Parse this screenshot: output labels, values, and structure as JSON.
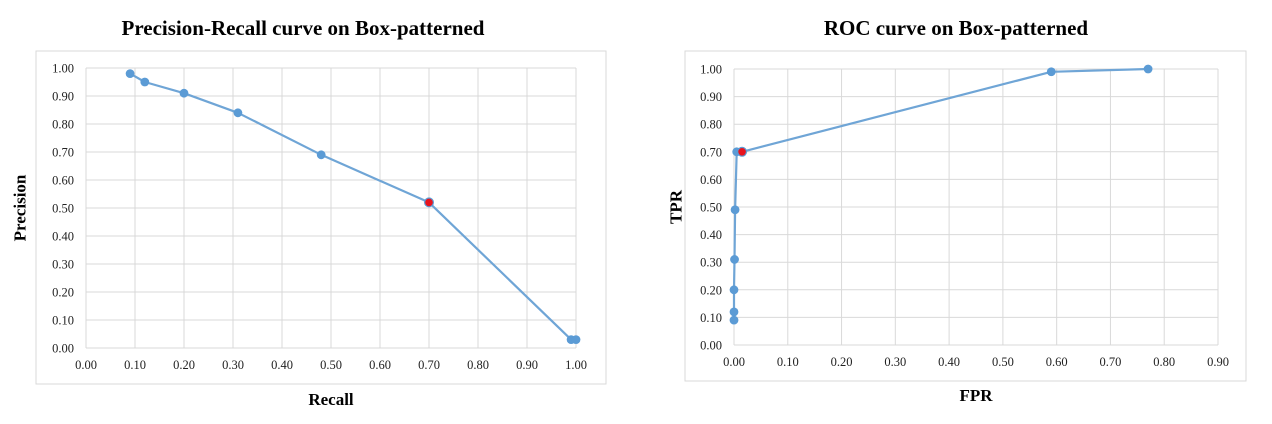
{
  "chart_data": [
    {
      "type": "line",
      "title": "Precision-Recall curve on Box-patterned",
      "xlabel": "Recall",
      "ylabel": "Precision",
      "xlim": [
        0,
        1
      ],
      "ylim": [
        0,
        1
      ],
      "x_ticks": [
        "0.00",
        "0.10",
        "0.20",
        "0.30",
        "0.40",
        "0.50",
        "0.60",
        "0.70",
        "0.80",
        "0.90",
        "1.00"
      ],
      "y_ticks": [
        "0.00",
        "0.10",
        "0.20",
        "0.30",
        "0.40",
        "0.50",
        "0.60",
        "0.70",
        "0.80",
        "0.90",
        "1.00"
      ],
      "grid": true,
      "legend": "none",
      "colors": {
        "line": "#6fa5d6",
        "marker": "#5b9bd5",
        "highlight": "#e8141e"
      },
      "series": [
        {
          "x": [
            0.09,
            0.12,
            0.2,
            0.31,
            0.48,
            0.7,
            0.99,
            1.0
          ],
          "y": [
            0.98,
            0.95,
            0.91,
            0.84,
            0.69,
            0.52,
            0.03,
            0.03
          ]
        }
      ],
      "highlight_point": {
        "x": 0.7,
        "y": 0.52
      }
    },
    {
      "type": "line",
      "title": "ROC curve on Box-patterned",
      "xlabel": "FPR",
      "ylabel": "TPR",
      "xlim": [
        0,
        0.9
      ],
      "ylim": [
        0,
        1
      ],
      "x_ticks": [
        "0.00",
        "0.10",
        "0.20",
        "0.30",
        "0.40",
        "0.50",
        "0.60",
        "0.70",
        "0.80",
        "0.90"
      ],
      "y_ticks": [
        "0.00",
        "0.10",
        "0.20",
        "0.30",
        "0.40",
        "0.50",
        "0.60",
        "0.70",
        "0.80",
        "0.90",
        "1.00"
      ],
      "grid": true,
      "legend": "none",
      "colors": {
        "line": "#6fa5d6",
        "marker": "#5b9bd5",
        "highlight": "#e8141e"
      },
      "series": [
        {
          "x": [
            0.0,
            0.0,
            0.0,
            0.001,
            0.002,
            0.005,
            0.015,
            0.59,
            0.77
          ],
          "y": [
            0.09,
            0.12,
            0.2,
            0.31,
            0.49,
            0.7,
            0.7,
            0.99,
            1.0
          ]
        }
      ],
      "highlight_point": {
        "x": 0.015,
        "y": 0.7
      }
    }
  ]
}
